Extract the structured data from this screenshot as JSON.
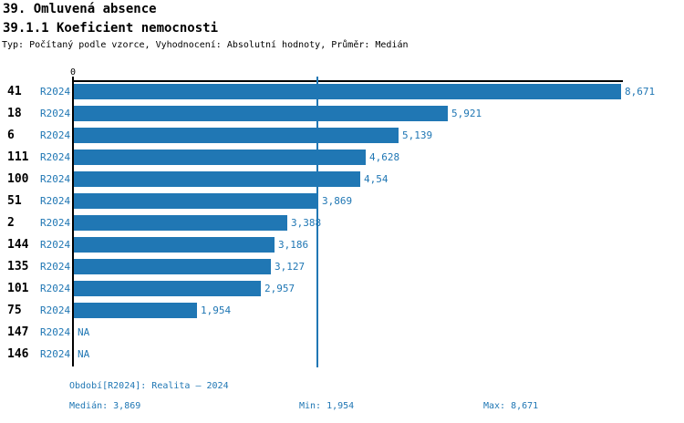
{
  "header": {
    "title": "39. Omluvená absence",
    "subtitle": "39.1.1 Koeficient nemocnosti",
    "meta": "Typ: Počítaný podle vzorce, Vyhodnocení: Absolutní hodnoty, Průměr: Medián"
  },
  "colors": {
    "bar": "#2077b4",
    "accent_text": "#2077b4",
    "axis": "#000000"
  },
  "chart_data": {
    "type": "bar",
    "orientation": "horizontal",
    "title": "39.1.1 Koeficient nemocnosti",
    "axis_zero_label": "0",
    "period_label": "R2024",
    "categories": [
      "41",
      "18",
      "6",
      "111",
      "100",
      "51",
      "2",
      "144",
      "135",
      "101",
      "75",
      "147",
      "146"
    ],
    "values": [
      8.671,
      5.921,
      5.139,
      4.628,
      4.54,
      3.869,
      3.388,
      3.186,
      3.127,
      2.957,
      1.954,
      null,
      null
    ],
    "value_labels": [
      "8,671",
      "5,921",
      "5,139",
      "4,628",
      "4,54",
      "3,869",
      "3,388",
      "3,186",
      "3,127",
      "2,957",
      "1,954",
      "NA",
      "NA"
    ],
    "xlim": [
      0,
      8.671
    ],
    "median_value": 3.869,
    "median_line": true,
    "grid": false,
    "legend": false
  },
  "footer": {
    "period_info": "Období[R2024]: Realita – 2024",
    "median": "Medián: 3,869",
    "min": "Min: 1,954",
    "max": "Max: 8,671"
  }
}
